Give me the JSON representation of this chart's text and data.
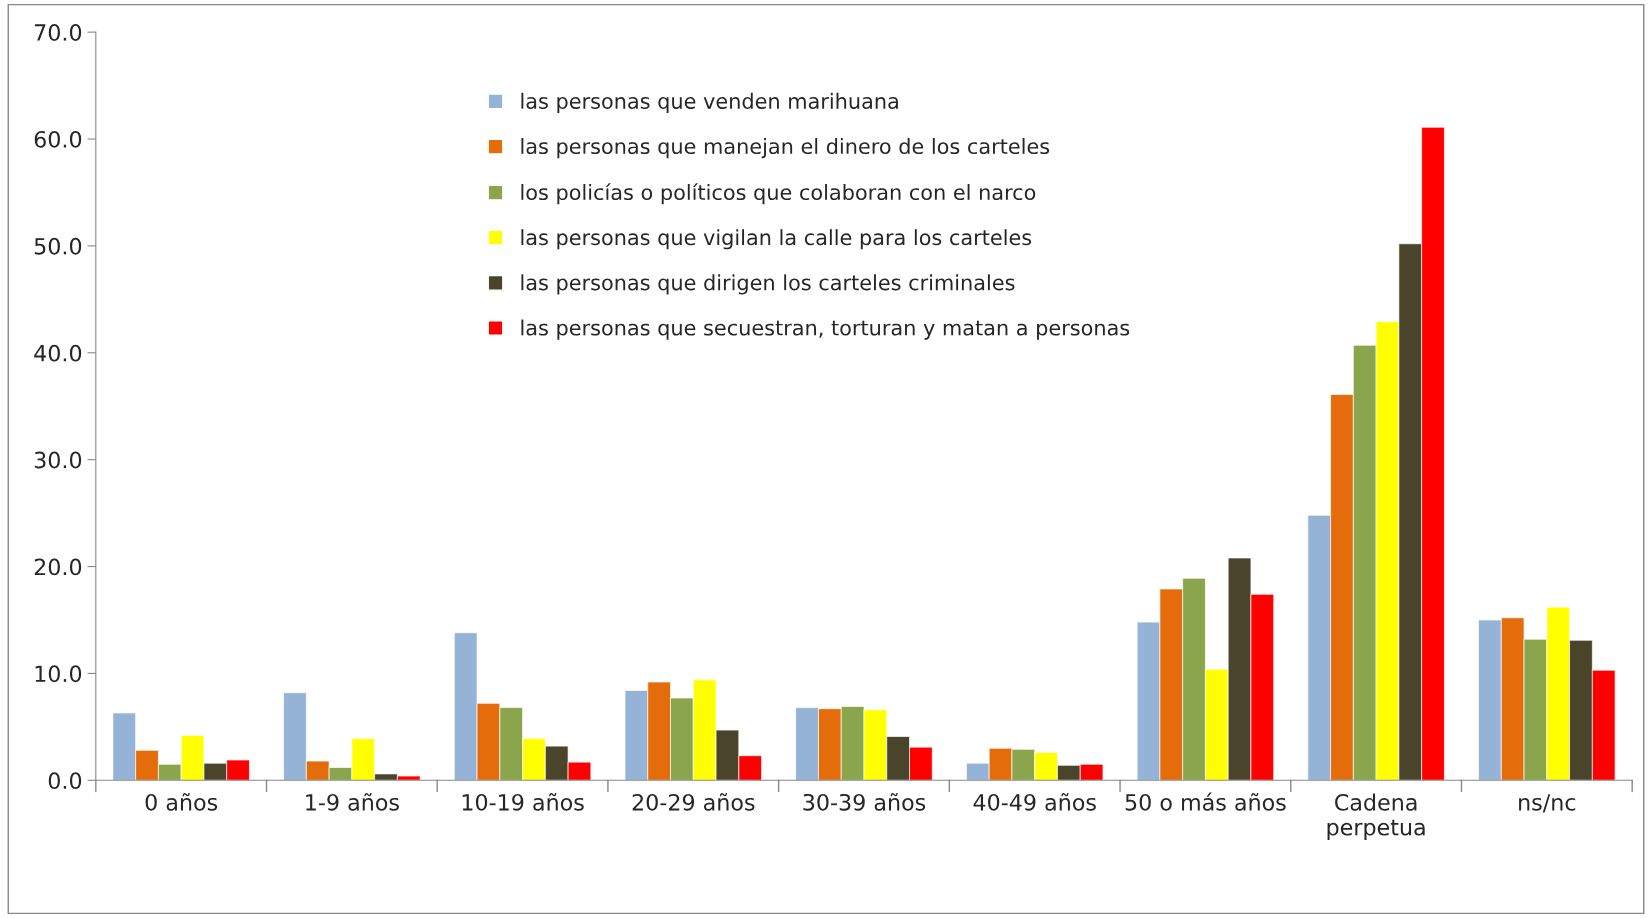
{
  "chart_data": {
    "type": "bar",
    "categories": [
      "0 años",
      "1-9 años",
      "10-19 años",
      "20-29 años",
      "30-39 años",
      "40-49 años",
      "50 o más años",
      "Cadena\nperpetua",
      "ns/nc"
    ],
    "series": [
      {
        "name": "las personas que venden marihuana",
        "color": "#95b3d7",
        "values": [
          6.3,
          8.2,
          13.8,
          8.4,
          6.8,
          1.6,
          14.8,
          24.8,
          15.0
        ]
      },
      {
        "name": "las personas que manejan el dinero de los carteles",
        "color": "#e46c0a",
        "values": [
          2.8,
          1.8,
          7.2,
          9.2,
          6.7,
          3.0,
          17.9,
          36.1,
          15.2
        ]
      },
      {
        "name": "los policías o políticos que colaboran con el narco",
        "color": "#8aa54c",
        "values": [
          1.5,
          1.2,
          6.8,
          7.7,
          6.9,
          2.9,
          18.9,
          40.7,
          13.2
        ]
      },
      {
        "name": "las personas que vigilan la calle para los carteles",
        "color": "#ffff00",
        "values": [
          4.2,
          3.9,
          3.9,
          9.4,
          6.6,
          2.6,
          10.4,
          42.9,
          16.2
        ]
      },
      {
        "name": "las personas que dirigen los carteles criminales",
        "color": "#4a452a",
        "values": [
          1.6,
          0.6,
          3.2,
          4.7,
          4.1,
          1.4,
          20.8,
          50.2,
          13.1
        ]
      },
      {
        "name": "las personas que secuestran, torturan y matan a personas",
        "color": "#ff0000",
        "values": [
          1.9,
          0.4,
          1.7,
          2.3,
          3.1,
          1.5,
          17.4,
          61.1,
          10.3
        ]
      }
    ],
    "ylim": [
      0,
      70
    ],
    "yticks": [
      {
        "value": 0,
        "label": "0.0"
      },
      {
        "value": 10,
        "label": "10.0"
      },
      {
        "value": 20,
        "label": "20.0"
      },
      {
        "value": 30,
        "label": "30.0"
      },
      {
        "value": 40,
        "label": "40.0"
      },
      {
        "value": 50,
        "label": "50.0"
      },
      {
        "value": 60,
        "label": "60.0"
      },
      {
        "value": 70,
        "label": "70.0"
      }
    ],
    "grid": false,
    "legend": "top left"
  }
}
